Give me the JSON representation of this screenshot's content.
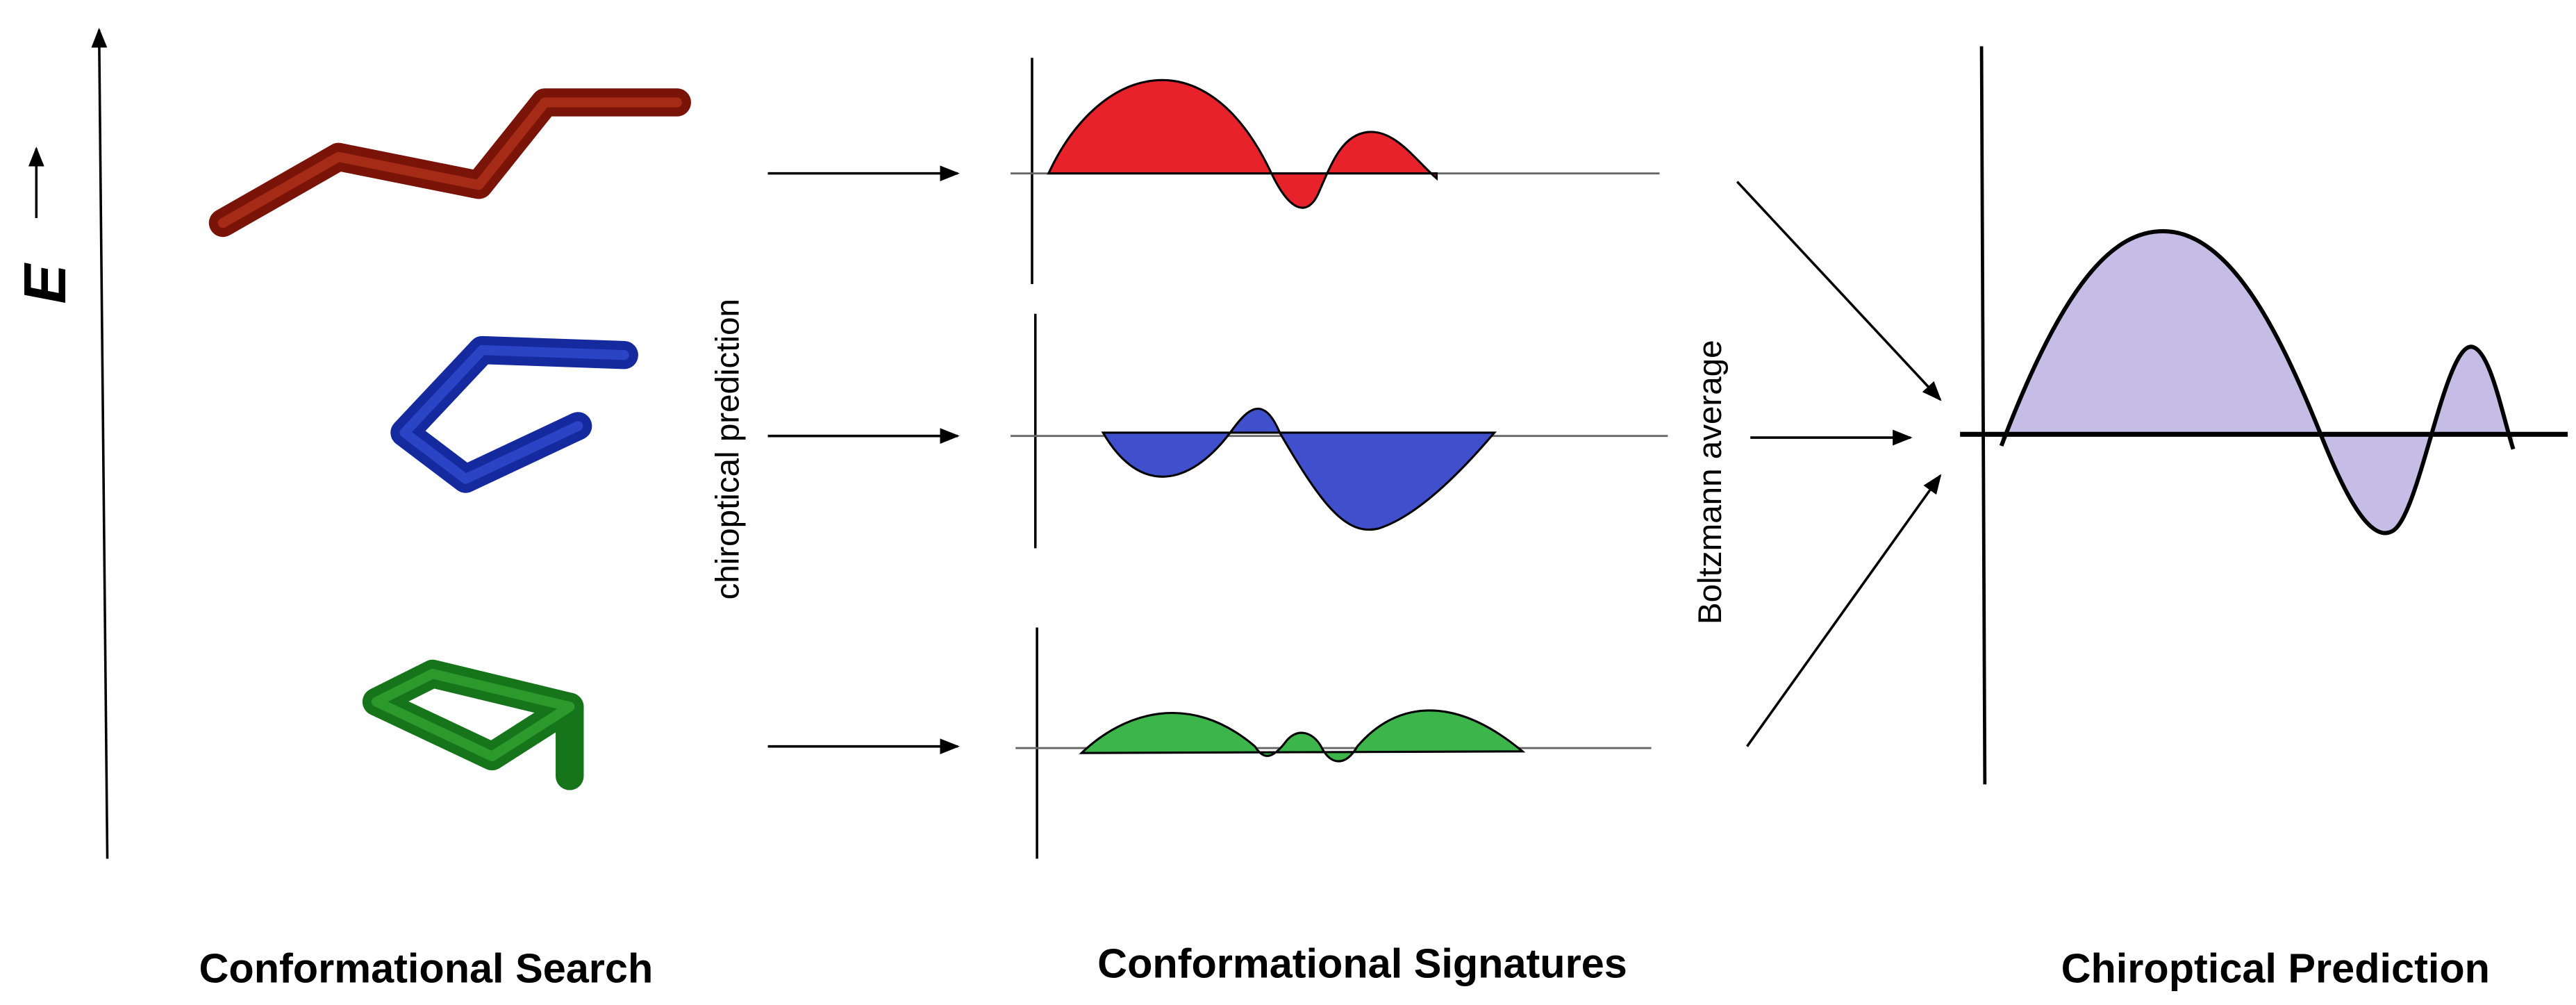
{
  "energy_axis_label": "E",
  "arrow_labels": {
    "left": "chiroptical prediction",
    "right": "Boltzmann average"
  },
  "sections": [
    {
      "title": "Conformational Search"
    },
    {
      "title": "Conformational Signatures"
    },
    {
      "title": "Chiroptical Prediction"
    }
  ]
}
